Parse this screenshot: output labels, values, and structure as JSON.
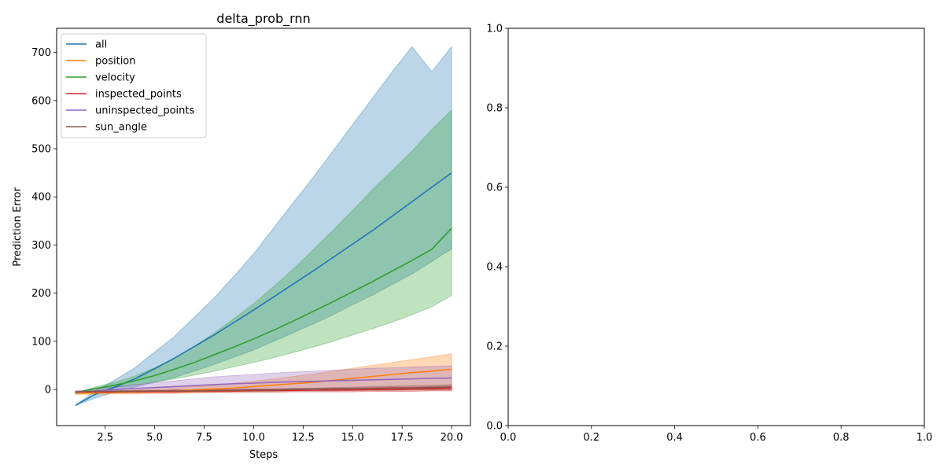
{
  "chart_data": [
    {
      "type": "line",
      "title": "delta_prob_rnn",
      "xlabel": "Steps",
      "ylabel": "Prediction Error",
      "xlim": [
        0.05,
        20.95
      ],
      "ylim": [
        -75,
        750
      ],
      "xticks": [
        2.5,
        5.0,
        7.5,
        10.0,
        12.5,
        15.0,
        17.5,
        20.0
      ],
      "xtick_labels": [
        "2.5",
        "5.0",
        "7.5",
        "10.0",
        "12.5",
        "15.0",
        "17.5",
        "20.0"
      ],
      "yticks": [
        0,
        100,
        200,
        300,
        400,
        500,
        600,
        700
      ],
      "ytick_labels": [
        "0",
        "100",
        "200",
        "300",
        "400",
        "500",
        "600",
        "700"
      ],
      "grid": false,
      "legend_position": "top-left",
      "x": [
        1,
        2,
        3,
        4,
        5,
        6,
        7,
        8,
        9,
        10,
        11,
        12,
        13,
        14,
        15,
        16,
        17,
        18,
        19,
        20
      ],
      "series": [
        {
          "name": "all",
          "color": "#1f77b4",
          "values": [
            -33,
            -10,
            5,
            22,
            43,
            65,
            89,
            113,
            139,
            165,
            192,
            219,
            246,
            274,
            302,
            330,
            360,
            390,
            420,
            450
          ],
          "lower": [
            -33,
            -18,
            -5,
            5,
            15,
            25,
            38,
            52,
            67,
            82,
            100,
            118,
            136,
            155,
            176,
            196,
            218,
            240,
            266,
            292
          ],
          "upper": [
            -33,
            -2,
            20,
            45,
            78,
            110,
            150,
            190,
            235,
            282,
            335,
            388,
            440,
            495,
            550,
            605,
            660,
            712,
            660,
            712
          ]
        },
        {
          "name": "position",
          "color": "#ff7f0e",
          "values": [
            -8,
            -7,
            -6,
            -5,
            -4,
            -3,
            -1,
            1,
            3,
            6,
            9,
            12,
            15,
            19,
            23,
            27,
            31,
            35,
            38,
            42
          ],
          "lower": [
            -10,
            -10,
            -9,
            -9,
            -8,
            -8,
            -7,
            -6,
            -5,
            -4,
            -3,
            -2,
            -1,
            0,
            1,
            2,
            3,
            4,
            5,
            6
          ],
          "upper": [
            -6,
            -4,
            -3,
            -1,
            1,
            3,
            6,
            9,
            13,
            17,
            22,
            27,
            32,
            38,
            44,
            50,
            56,
            62,
            68,
            74
          ]
        },
        {
          "name": "velocity",
          "color": "#2ca02c",
          "values": [
            -7,
            2,
            9,
            18,
            29,
            42,
            56,
            72,
            88,
            105,
            123,
            142,
            162,
            182,
            203,
            224,
            246,
            268,
            291,
            335
          ],
          "lower": [
            -7,
            -1,
            4,
            9,
            15,
            22,
            30,
            38,
            47,
            56,
            66,
            77,
            88,
            100,
            113,
            126,
            140,
            155,
            172,
            195
          ],
          "upper": [
            -7,
            5,
            15,
            28,
            45,
            65,
            90,
            117,
            147,
            178,
            213,
            250,
            290,
            330,
            372,
            415,
            455,
            495,
            540,
            580
          ]
        },
        {
          "name": "inspected_points",
          "color": "#d62728",
          "values": [
            -5,
            -5,
            -5,
            -4,
            -4,
            -4,
            -3,
            -3,
            -3,
            -2,
            -2,
            -2,
            -1,
            -1,
            -1,
            0,
            0,
            1,
            1,
            2
          ],
          "lower": [
            -7,
            -7,
            -7,
            -7,
            -7,
            -7,
            -6,
            -6,
            -6,
            -6,
            -6,
            -5,
            -5,
            -5,
            -5,
            -4,
            -4,
            -4,
            -3,
            -3
          ],
          "upper": [
            -3,
            -3,
            -3,
            -2,
            -2,
            -1,
            -1,
            0,
            0,
            1,
            1,
            2,
            2,
            3,
            3,
            4,
            5,
            5,
            6,
            7
          ]
        },
        {
          "name": "uninspected_points",
          "color": "#9467bd",
          "values": [
            -6,
            -3,
            0,
            2,
            4,
            6,
            8,
            10,
            12,
            13,
            15,
            16,
            17,
            18,
            19,
            20,
            21,
            22,
            23,
            24
          ],
          "lower": [
            -8,
            -7,
            -6,
            -5,
            -4,
            -3,
            -2,
            -1,
            0,
            1,
            1,
            2,
            2,
            3,
            3,
            3,
            3,
            3,
            3,
            3
          ],
          "upper": [
            -4,
            2,
            6,
            10,
            14,
            18,
            22,
            26,
            29,
            31,
            34,
            36,
            38,
            40,
            42,
            44,
            45,
            47,
            48,
            49
          ]
        },
        {
          "name": "sun_angle",
          "color": "#8c564b",
          "values": [
            -5,
            -4,
            -4,
            -4,
            -3,
            -3,
            -3,
            -2,
            -2,
            -1,
            -1,
            0,
            0,
            1,
            1,
            2,
            3,
            3,
            4,
            5
          ],
          "lower": [
            -6,
            -6,
            -6,
            -6,
            -5,
            -5,
            -5,
            -5,
            -4,
            -4,
            -4,
            -3,
            -3,
            -3,
            -2,
            -2,
            -2,
            -1,
            -1,
            -1
          ],
          "upper": [
            -4,
            -3,
            -3,
            -2,
            -2,
            -1,
            -1,
            0,
            0,
            1,
            1,
            2,
            3,
            4,
            5,
            6,
            7,
            8,
            9,
            10
          ]
        }
      ]
    },
    {
      "type": "line",
      "title": "",
      "xlabel": "",
      "ylabel": "",
      "xlim": [
        0,
        1
      ],
      "ylim": [
        0,
        1
      ],
      "xticks": [
        0.0,
        0.2,
        0.4,
        0.6,
        0.8,
        1.0
      ],
      "xtick_labels": [
        "0.0",
        "0.2",
        "0.4",
        "0.6",
        "0.8",
        "1.0"
      ],
      "yticks": [
        0.0,
        0.2,
        0.4,
        0.6,
        0.8,
        1.0
      ],
      "ytick_labels": [
        "0.0",
        "0.2",
        "0.4",
        "0.6",
        "0.8",
        "1.0"
      ],
      "grid": false,
      "series": []
    }
  ]
}
